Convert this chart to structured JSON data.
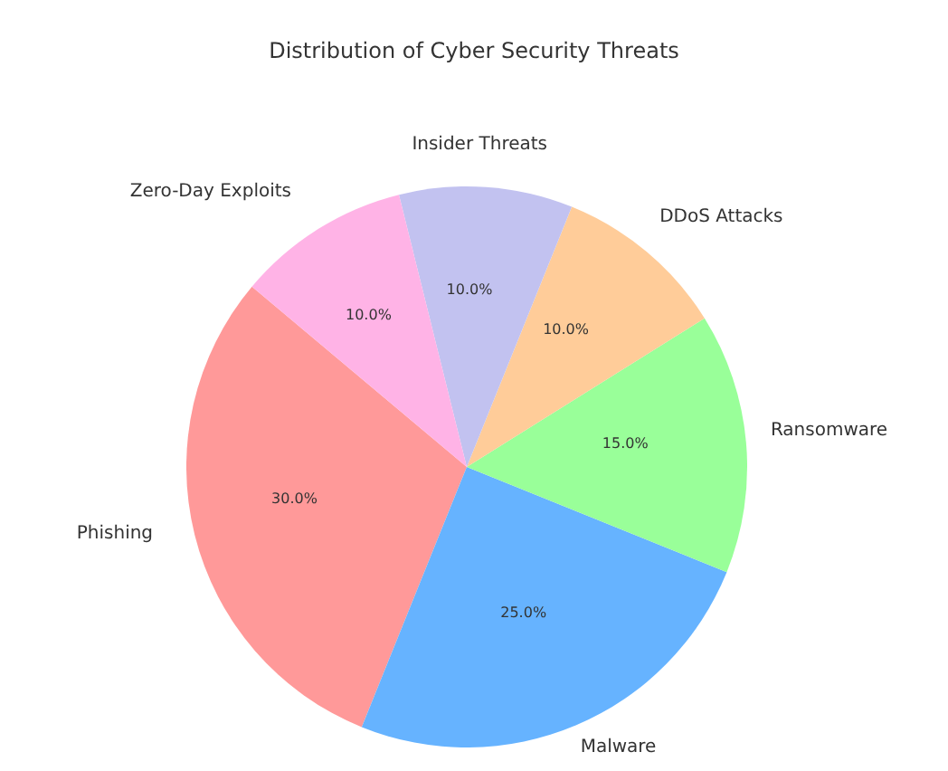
{
  "chart_data": {
    "type": "pie",
    "title": "Distribution of Cyber Security Threats",
    "categories": [
      "Phishing",
      "Malware",
      "Ransomware",
      "DDoS Attacks",
      "Insider Threats",
      "Zero-Day Exploits"
    ],
    "values": [
      30,
      25,
      15,
      10,
      10,
      10
    ],
    "value_labels": [
      "30.0%",
      "25.0%",
      "15.0%",
      "10.0%",
      "10.0%",
      "10.0%"
    ],
    "colors": [
      "#ff9999",
      "#66b3ff",
      "#99ff99",
      "#ffcc99",
      "#c2c2f0",
      "#ffb3e6"
    ]
  }
}
